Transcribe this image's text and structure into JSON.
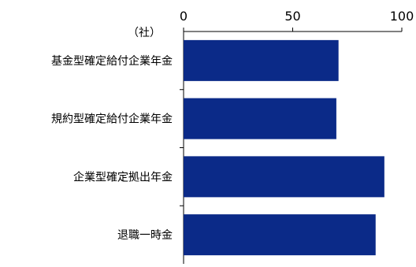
{
  "chart_data": {
    "type": "bar",
    "orientation": "horizontal",
    "unit_label": "（社）",
    "categories": [
      "基金型確定給付企業年金",
      "規約型確定給付企業年金",
      "企業型確定拠出年金",
      "退職一時金"
    ],
    "values": [
      71,
      70,
      92,
      88
    ],
    "xlim": [
      0,
      100
    ],
    "xticks": [
      "0",
      "50",
      "100"
    ],
    "axis_position": "top",
    "grid": false,
    "bar_color": "#0b2a88"
  }
}
